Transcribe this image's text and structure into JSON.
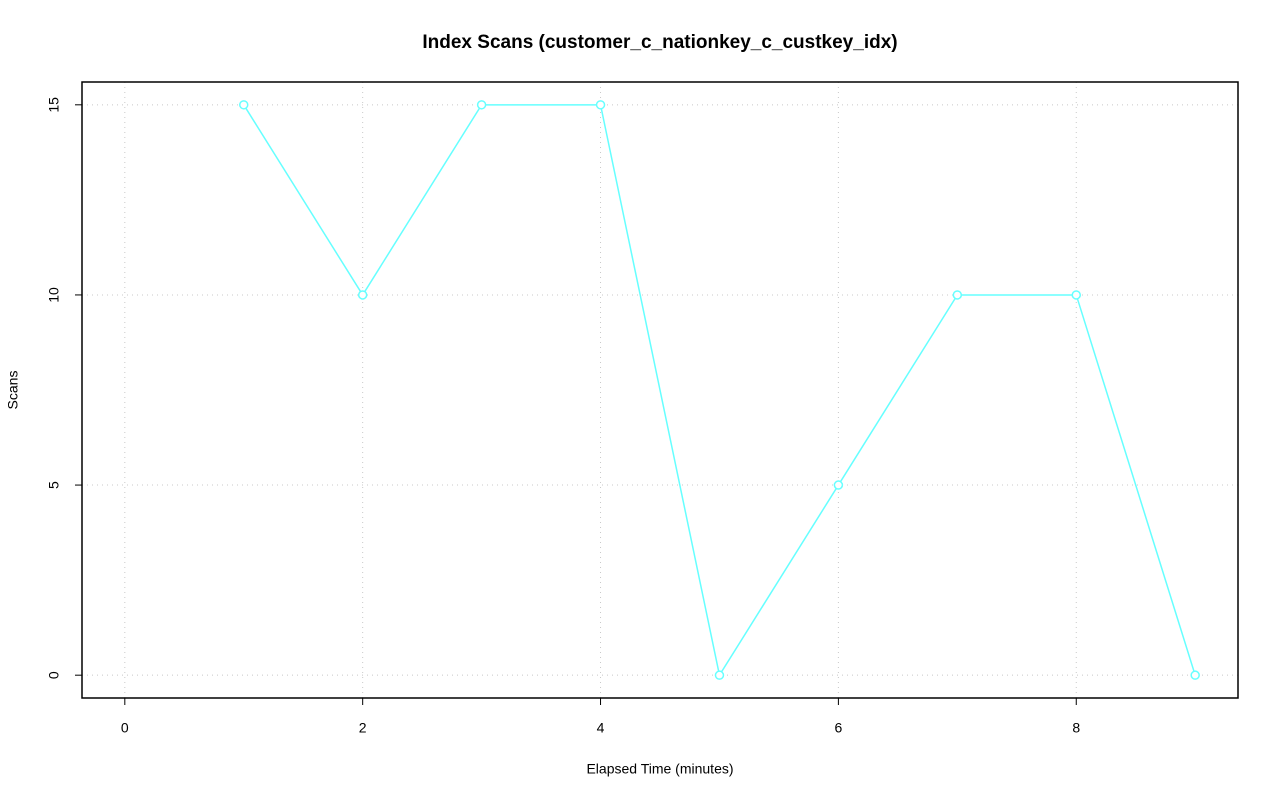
{
  "chart_data": {
    "type": "line",
    "title": "Index Scans (customer_c_nationkey_c_custkey_idx)",
    "x_label": "Elapsed Time (minutes)",
    "y_label": "Scans",
    "x": [
      1,
      2,
      3,
      4,
      5,
      6,
      7,
      8,
      9
    ],
    "series": [
      {
        "color": "#66ffff",
        "values": [
          15,
          10,
          15,
          15,
          0,
          5,
          10,
          10,
          0
        ]
      }
    ],
    "xlim": [
      -0.36,
      9.36
    ],
    "xticks": [
      0,
      2,
      4,
      6,
      8
    ],
    "ylim": [
      -0.6,
      15.6
    ],
    "yticks": [
      0,
      5,
      10,
      15
    ],
    "grid": true
  }
}
